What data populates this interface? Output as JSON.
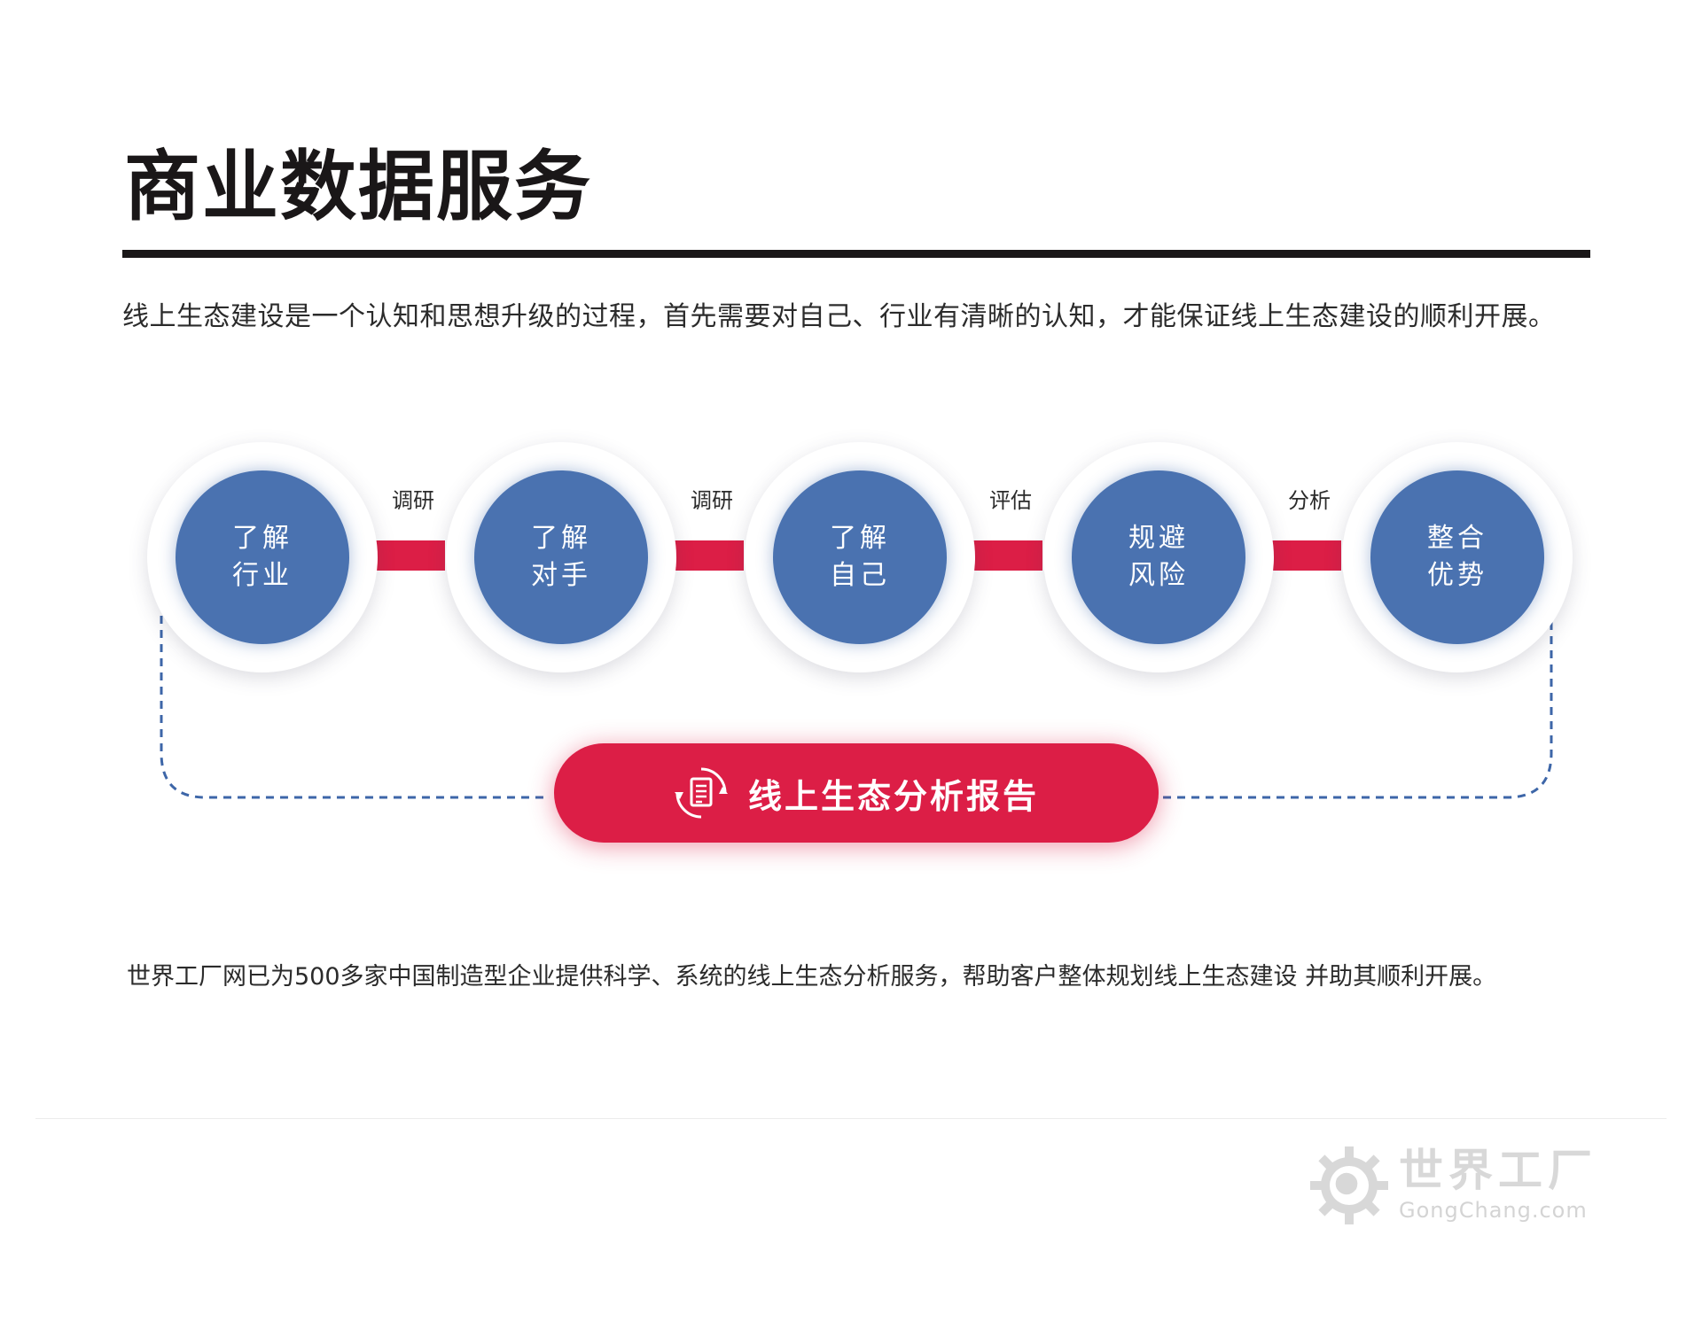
{
  "title": "商业数据服务",
  "intro": "线上生态建设是一个认知和思想升级的过程，首先需要对自己、行业有清晰的认知，才能保证线上生态建设的顺利开展。",
  "flow": {
    "nodes": [
      {
        "line1": "了解",
        "line2": "行业"
      },
      {
        "line1": "了解",
        "line2": "对手"
      },
      {
        "line1": "了解",
        "line2": "自己"
      },
      {
        "line1": "规避",
        "line2": "风险"
      },
      {
        "line1": "整合",
        "line2": "优势"
      }
    ],
    "connectors": [
      "调研",
      "调研",
      "评估",
      "分析"
    ],
    "report": "线上生态分析报告",
    "report_icon": "document-refresh-icon"
  },
  "summary": "世界工厂网已为500多家中国制造型企业提供科学、系统的线上生态分析服务，帮助客户整体规划线上生态建设 并助其顺利开展。",
  "logo": {
    "name": "世界工厂",
    "domain": "GongChang.com",
    "icon": "globe-gear-icon"
  },
  "colors": {
    "node_blue": "#4a72b0",
    "connector_red": "#dc1e46",
    "dashed_blue": "#3d66a8",
    "title_black": "#1a1718"
  }
}
